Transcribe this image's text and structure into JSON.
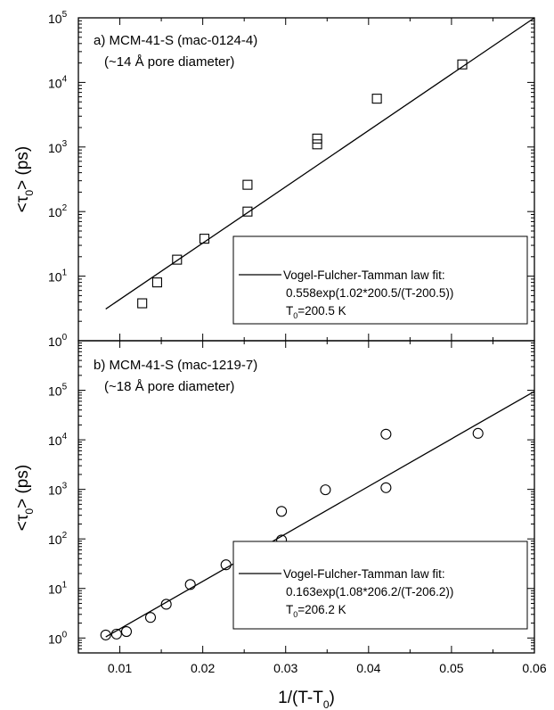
{
  "chart_data": [
    {
      "type": "scatter",
      "annotation_lines": [
        "a) MCM-41-S (mac-0124-4)",
        "(~14 Å pore diameter)"
      ],
      "ylabel": {
        "main": "<τ",
        "sub": "0",
        "rest": "> (ps)"
      },
      "y_scale": "log",
      "ylim": [
        1,
        100000
      ],
      "xlim": [
        0.005,
        0.06
      ],
      "y_tick_powers": [
        "0",
        "1",
        "2",
        "3",
        "4",
        "5"
      ],
      "marker": "square",
      "series": [
        {
          "values": [
            {
              "x": 0.0127,
              "y": 3.8
            },
            {
              "x": 0.0145,
              "y": 8.0
            },
            {
              "x": 0.0169,
              "y": 18
            },
            {
              "x": 0.0202,
              "y": 38
            },
            {
              "x": 0.0254,
              "y": 100
            },
            {
              "x": 0.0254,
              "y": 260
            },
            {
              "x": 0.0338,
              "y": 1100
            },
            {
              "x": 0.0338,
              "y": 1350
            },
            {
              "x": 0.041,
              "y": 5600
            },
            {
              "x": 0.0513,
              "y": 19000
            }
          ]
        }
      ],
      "fit": {
        "x1": 0.0083,
        "y1": 3.1,
        "x2": 0.06,
        "y2": 100000
      },
      "legend": {
        "position": "bottom-right",
        "lines": [
          "Vogel-Fulcher-Tamman law fit:",
          "0.558exp(1.02*200.5/(T-200.5))"
        ],
        "t0": {
          "main": "T",
          "sub": "0",
          "rest": "=200.5 K"
        }
      }
    },
    {
      "type": "scatter",
      "annotation_lines": [
        "b) MCM-41-S (mac-1219-7)",
        "(~18 Å pore diameter)"
      ],
      "ylabel": {
        "main": "<τ",
        "sub": "0",
        "rest": "> (ps)"
      },
      "xlabel": {
        "main": "1/(T-T",
        "sub": "0",
        "rest": ")"
      },
      "y_scale": "log",
      "ylim": [
        0.5,
        1000000
      ],
      "xlim": [
        0.005,
        0.06
      ],
      "y_tick_powers": [
        "0",
        "1",
        "2",
        "3",
        "4",
        "5"
      ],
      "x_ticks": [
        "0.01",
        "0.02",
        "0.03",
        "0.04",
        "0.05",
        "0.06"
      ],
      "marker": "circle",
      "series": [
        {
          "values": [
            {
              "x": 0.0083,
              "y": 1.15
            },
            {
              "x": 0.0096,
              "y": 1.2
            },
            {
              "x": 0.0108,
              "y": 1.35
            },
            {
              "x": 0.0137,
              "y": 2.6
            },
            {
              "x": 0.0156,
              "y": 4.8
            },
            {
              "x": 0.0185,
              "y": 12
            },
            {
              "x": 0.0228,
              "y": 30
            },
            {
              "x": 0.0295,
              "y": 95
            },
            {
              "x": 0.0295,
              "y": 360
            },
            {
              "x": 0.0348,
              "y": 980
            },
            {
              "x": 0.0421,
              "y": 1080
            },
            {
              "x": 0.0421,
              "y": 13000
            },
            {
              "x": 0.0532,
              "y": 13500
            }
          ]
        }
      ],
      "fit": {
        "x1": 0.0083,
        "y1": 1.05,
        "x2": 0.06,
        "y2": 95000
      },
      "legend": {
        "position": "bottom-right",
        "lines": [
          "Vogel-Fulcher-Tamman law fit:",
          "0.163exp(1.08*206.2/(T-206.2))"
        ],
        "t0": {
          "main": "T",
          "sub": "0",
          "rest": "=206.2 K"
        }
      }
    }
  ]
}
